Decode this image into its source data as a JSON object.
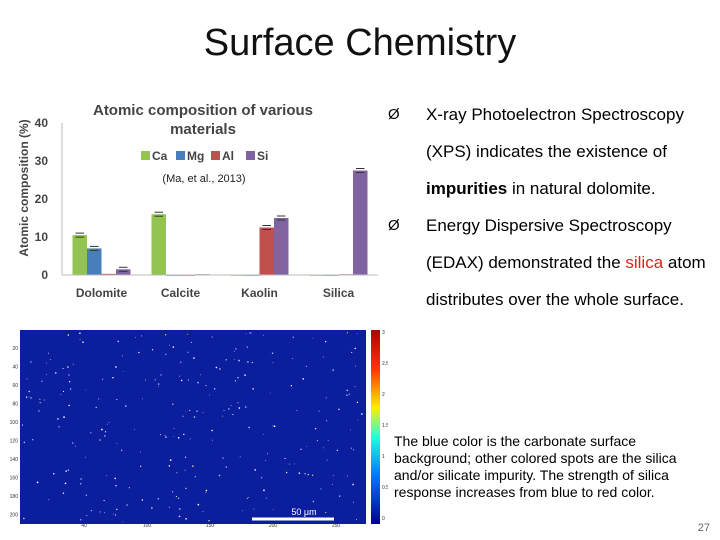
{
  "title": "Surface Chemistry",
  "chart_data": {
    "type": "bar",
    "title": "Atomic composition of various materials",
    "ylabel": "Atomic composition (%)",
    "xlabel": "",
    "ylim": [
      0,
      40
    ],
    "yticks": [
      0,
      10,
      20,
      30,
      40
    ],
    "categories": [
      "Dolomite",
      "Calcite",
      "Kaolin",
      "Silica"
    ],
    "series": [
      {
        "name": "Ca",
        "color": "#92c353",
        "values": [
          10.5,
          16,
          0,
          0
        ]
      },
      {
        "name": "Mg",
        "color": "#4a7ebb",
        "values": [
          7,
          0,
          0,
          0
        ]
      },
      {
        "name": "Al",
        "color": "#c0504d",
        "values": [
          0.3,
          0,
          12.5,
          0.2
        ]
      },
      {
        "name": "Si",
        "color": "#8064a2",
        "values": [
          1.5,
          0.2,
          15,
          27.5
        ]
      }
    ],
    "legend": "top-center",
    "annotation": "(Ma, et al., 2013)",
    "grid": false
  },
  "map": {
    "scale_label": "50 μm",
    "x_ticks": [
      "40",
      "100",
      "150",
      "200",
      "250"
    ],
    "y_ticks": [
      "20",
      "40",
      "60",
      "80",
      "100",
      "120",
      "140",
      "160",
      "180",
      "200"
    ],
    "colorbar_ticks": [
      "3",
      "2.5",
      "2",
      "1.5",
      "1",
      "0.5",
      "0"
    ]
  },
  "bullets": {
    "b1": {
      "arrow": "Ø",
      "text1": "X-ray Photoelectron Spectroscopy (XPS) indicates the existence of ",
      "em": "impurities",
      "text2": " in natural dolomite."
    },
    "b2": {
      "arrow": "Ø",
      "text1": "Energy Dispersive Spectroscopy (EDAX) demonstrated the ",
      "red": "silica",
      "text2": " atom distributes over the whole surface."
    }
  },
  "note": "The blue color is the carbonate surface background; other colored spots are the silica and/or silicate impurity. The strength of silica response increases from blue to red color.",
  "page_number": "27"
}
